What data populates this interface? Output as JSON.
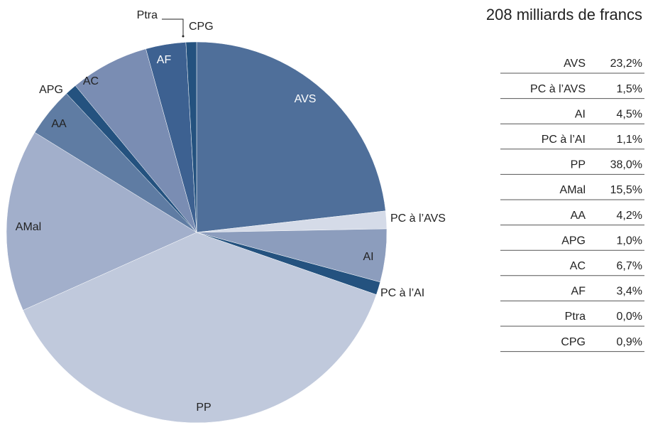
{
  "chart_data": {
    "type": "pie",
    "title": "208 milliards de francs",
    "categories": [
      "AVS",
      "PC à l’AVS",
      "AI",
      "PC à l’AI",
      "PP",
      "AMal",
      "AA",
      "APG",
      "AC",
      "AF",
      "Ptra",
      "CPG"
    ],
    "values": [
      23.2,
      1.5,
      4.5,
      1.1,
      38.0,
      15.5,
      4.2,
      1.0,
      6.7,
      3.4,
      0.0,
      0.9
    ],
    "value_labels": [
      "23,2%",
      "1,5%",
      "4,5%",
      "1,1%",
      "38,0%",
      "15,5%",
      "4,2%",
      "1,0%",
      "6,7%",
      "3,4%",
      "0,0%",
      "0,9%"
    ],
    "colors": [
      "#4f6f9a",
      "#d5dbe8",
      "#8c9dbd",
      "#24527f",
      "#c0c9dc",
      "#a2afcb",
      "#5f7ca3",
      "#24527f",
      "#7a8db3",
      "#3d6191",
      "#3d6191",
      "#24527f"
    ]
  }
}
